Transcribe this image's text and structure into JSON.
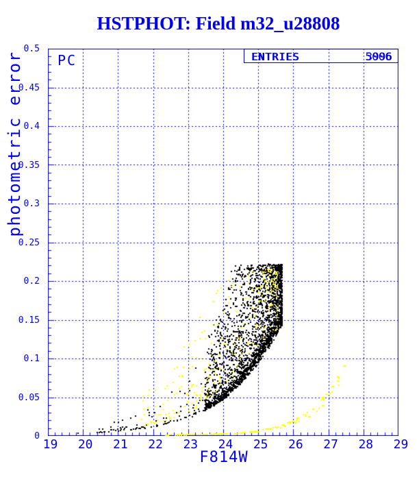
{
  "chart_data": {
    "type": "scatter",
    "title": "HSTPHOT: Field m32_u28808",
    "chip_label": "PC",
    "legend": {
      "label": "ENTRIES",
      "values": [
        "3996",
        "5006"
      ],
      "note": "two overprinted entry counts"
    },
    "xlabel": "F814W",
    "ylabel": "photometric error",
    "xlim": [
      19,
      29
    ],
    "ylim": [
      0,
      0.5
    ],
    "x_tick_labels": [
      "19",
      "20",
      "21",
      "22",
      "23",
      "24",
      "25",
      "26",
      "27",
      "28",
      "29"
    ],
    "y_tick_labels": [
      "0",
      "0.05",
      "0.1",
      "0.15",
      "0.2",
      "0.25",
      "0.3",
      "0.35",
      "0.4",
      "0.45",
      "0.5"
    ],
    "x_minor_step": 0.2,
    "y_minor_step": 0.01,
    "grid": {
      "style": "dashed",
      "on_major_ticks": true
    },
    "accent_color": "#0000EE",
    "background_color": "#FFFFFF",
    "series": [
      {
        "name": "pc-photometry-black",
        "color": "#000000",
        "entries": "3996",
        "marker_px": 2,
        "render_count": 2600,
        "lower_envelope": [
          [
            20.4,
            0.004
          ],
          [
            21,
            0.0065
          ],
          [
            22,
            0.012
          ],
          [
            23,
            0.024
          ],
          [
            23.5,
            0.035
          ],
          [
            24,
            0.05
          ],
          [
            24.5,
            0.072
          ],
          [
            25,
            0.1
          ],
          [
            25.5,
            0.138
          ],
          [
            25.68,
            0.152
          ]
        ],
        "dense": {
          "frac": 0.96,
          "m_max": 25.68,
          "span": 2.2,
          "pow": 1.6
        },
        "tail": {
          "m_max": 23.5,
          "span": 3.1,
          "pow": 1.4
        },
        "spread_amp": 2.4,
        "spread_pow": 3.2,
        "err_cap": 0.222,
        "outliers": [
          [
            19.85,
            0.0035
          ]
        ]
      },
      {
        "name": "pc-photometry-yellow",
        "color": "#FFFF00",
        "entries": "5006",
        "marker_px": 2,
        "render_count": 235,
        "envelope_mag_shift": 0.5,
        "dense": {
          "frac": 1.0,
          "m_max": 25.55,
          "span": 3.9,
          "pow": 1.5
        },
        "spread_base": 0.9,
        "spread_amp": 2.8,
        "spread_pow": 2.0,
        "err_cap": 0.215,
        "artifact_curve": {
          "count": 130,
          "m_min": 22.3,
          "m_span": 5.15,
          "pow": 1.3,
          "anchors": [
            [
              22.3,
              0.0012
            ],
            [
              23.5,
              0.0018
            ],
            [
              24.3,
              0.003
            ],
            [
              25.2,
              0.008
            ],
            [
              26,
              0.018
            ],
            [
              26.8,
              0.042
            ],
            [
              27.45,
              0.082
            ]
          ]
        }
      }
    ]
  }
}
